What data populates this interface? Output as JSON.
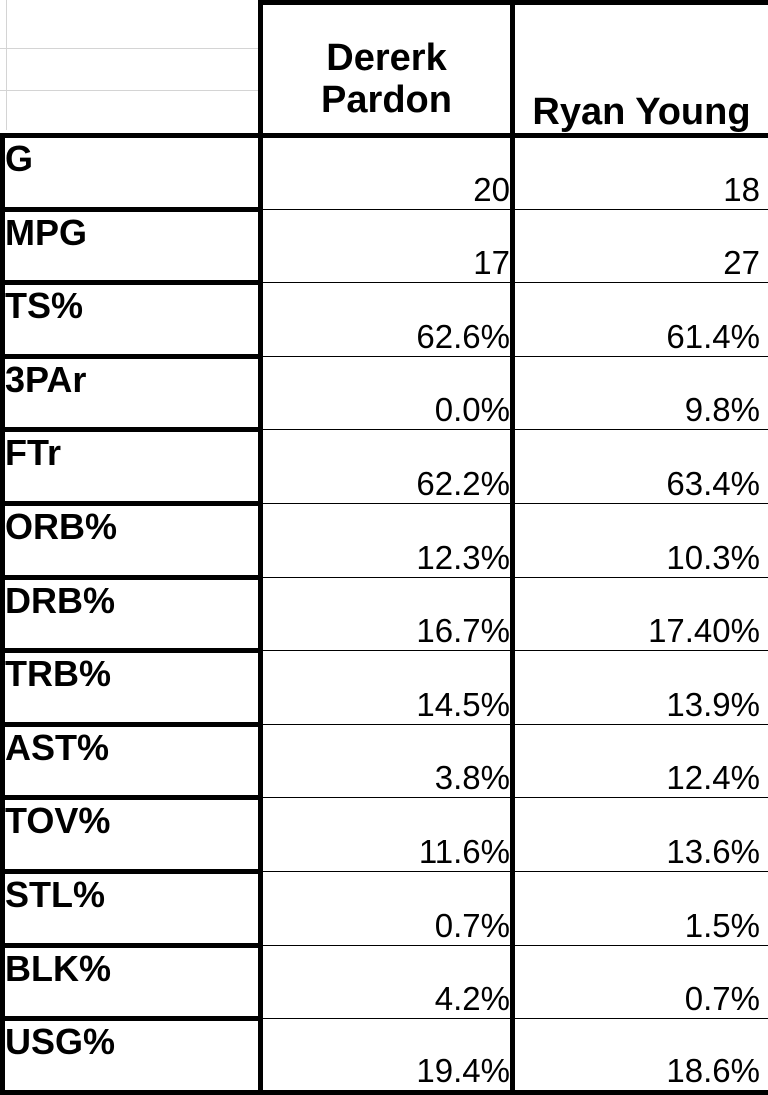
{
  "columns": {
    "player_a": [
      "Dererk",
      "Pardon"
    ],
    "player_b": "Ryan Young"
  },
  "rows": [
    {
      "stat": "G",
      "a": "20",
      "b": "18"
    },
    {
      "stat": "MPG",
      "a": "17",
      "b": "27"
    },
    {
      "stat": "TS%",
      "a": "62.6%",
      "b": "61.4%"
    },
    {
      "stat": "3PAr",
      "a": "0.0%",
      "b": "9.8%"
    },
    {
      "stat": "FTr",
      "a": "62.2%",
      "b": "63.4%"
    },
    {
      "stat": "ORB%",
      "a": "12.3%",
      "b": "10.3%"
    },
    {
      "stat": "DRB%",
      "a": "16.7%",
      "b": "17.40%"
    },
    {
      "stat": "TRB%",
      "a": "14.5%",
      "b": "13.9%"
    },
    {
      "stat": "AST%",
      "a": "3.8%",
      "b": "12.4%"
    },
    {
      "stat": "TOV%",
      "a": "11.6%",
      "b": "13.6%"
    },
    {
      "stat": "STL%",
      "a": "0.7%",
      "b": "1.5%"
    },
    {
      "stat": "BLK%",
      "a": "4.2%",
      "b": "0.7%"
    },
    {
      "stat": "USG%",
      "a": "19.4%",
      "b": "18.6%"
    }
  ]
}
